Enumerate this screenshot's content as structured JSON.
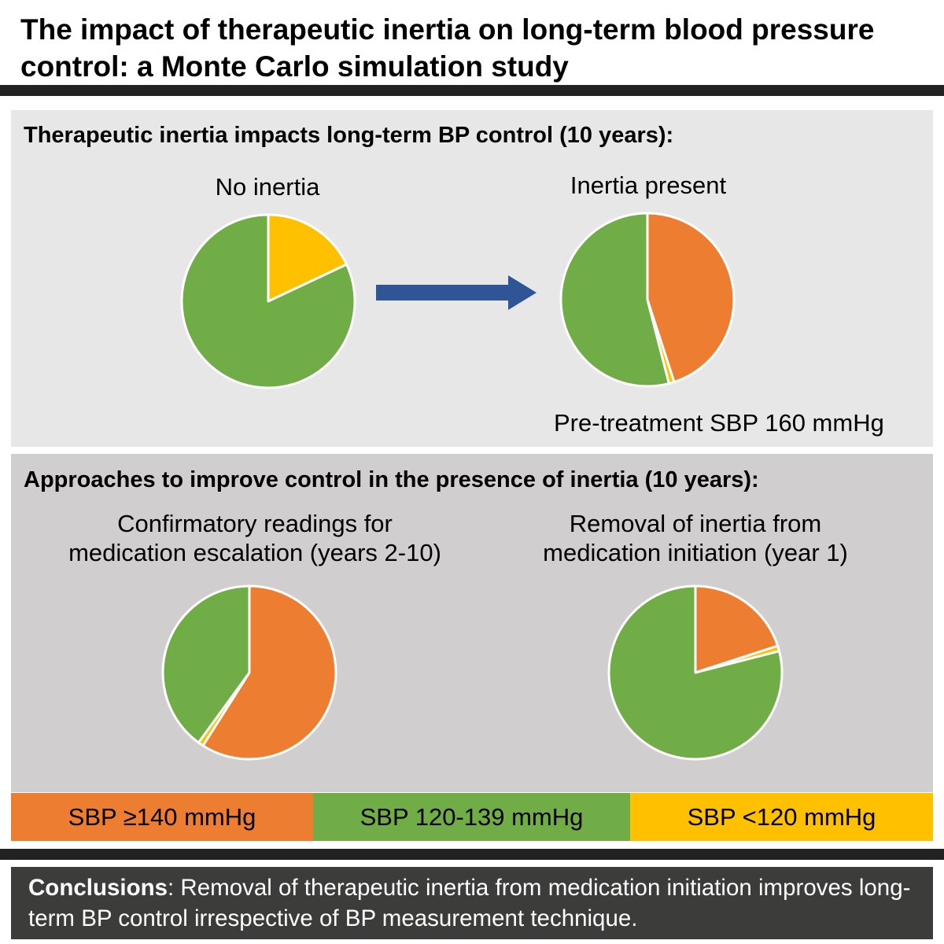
{
  "title": "The impact of therapeutic inertia on long-term blood pressure control: a Monte Carlo simulation study",
  "colors": {
    "sbp_ge_140": "#ed7d31",
    "sbp_120_139": "#70ad47",
    "sbp_lt_120": "#ffc000",
    "arrow": "#2f5597",
    "rule": "#222222",
    "top_panel_bg": "#e7e7e7",
    "bottom_panel_bg": "#d0cece",
    "conclusions_bg": "#3c3c3b"
  },
  "top_panel": {
    "heading": "Therapeutic inertia impacts long-term BP control (10 years):",
    "note": "Pre-treatment SBP 160 mmHg",
    "arrow_icon": "right-arrow-icon"
  },
  "bottom_panel": {
    "heading": "Approaches to improve control in the presence of inertia (10 years):"
  },
  "legend": [
    {
      "label": "SBP ≥140 mmHg",
      "color": "#ed7d31"
    },
    {
      "label": "SBP 120-139 mmHg",
      "color": "#70ad47"
    },
    {
      "label": "SBP <120 mmHg",
      "color": "#ffc000"
    }
  ],
  "chart_data": [
    {
      "type": "pie",
      "title": "No inertia",
      "categories": [
        "SBP ≥140 mmHg",
        "SBP <120 mmHg",
        "SBP 120-139 mmHg"
      ],
      "values": [
        0,
        18,
        82
      ]
    },
    {
      "type": "pie",
      "title": "Inertia present",
      "categories": [
        "SBP ≥140 mmHg",
        "SBP <120 mmHg",
        "SBP 120-139 mmHg"
      ],
      "values": [
        45,
        1,
        54
      ]
    },
    {
      "type": "pie",
      "title_lines": [
        "Confirmatory readings for",
        "medication escalation (years 2-10)"
      ],
      "categories": [
        "SBP ≥140 mmHg",
        "SBP <120 mmHg",
        "SBP 120-139 mmHg"
      ],
      "values": [
        59,
        1,
        40
      ]
    },
    {
      "type": "pie",
      "title_lines": [
        "Removal of inertia from",
        "medication initiation (year 1)"
      ],
      "categories": [
        "SBP ≥140 mmHg",
        "SBP <120 mmHg",
        "SBP 120-139 mmHg"
      ],
      "values": [
        20,
        1,
        79
      ]
    }
  ],
  "conclusions": {
    "label": "Conclusions",
    "text": ": Removal of therapeutic inertia from medication initiation improves long-term BP control irrespective of BP measurement technique."
  }
}
